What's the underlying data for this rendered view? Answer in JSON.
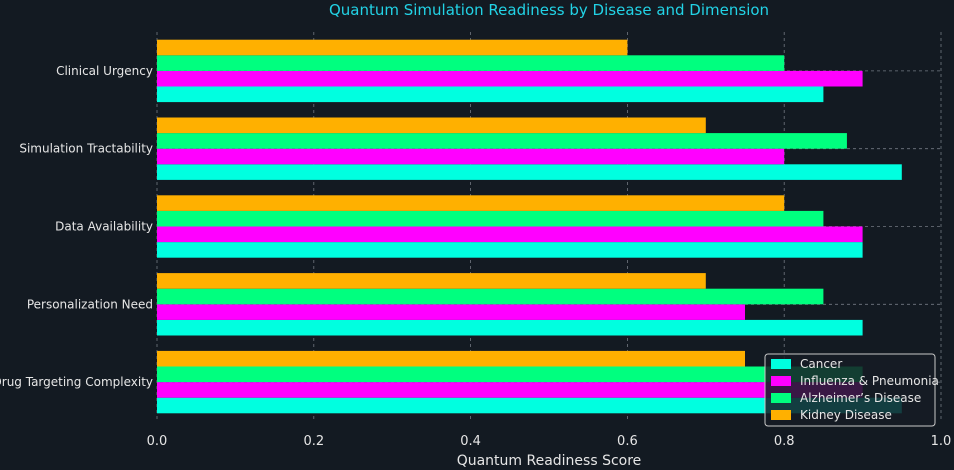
{
  "chart_data": {
    "type": "bar",
    "orientation": "horizontal",
    "title": "Quantum Simulation Readiness by Disease and Dimension",
    "xlabel": "Quantum Readiness Score",
    "ylabel": "",
    "xlim": [
      0,
      1.0
    ],
    "xticks": [
      "0.0",
      "0.2",
      "0.4",
      "0.6",
      "0.8",
      "1.0"
    ],
    "grid": true,
    "legend_position": "bottom-right",
    "categories": [
      "Clinical Urgency",
      "Simulation Tractability",
      "Data Availability",
      "Personalization Need",
      "Drug Targeting Complexity"
    ],
    "series": [
      {
        "name": "Cancer",
        "color": "#00ffe0",
        "values": [
          0.85,
          0.95,
          0.9,
          0.9,
          0.95
        ]
      },
      {
        "name": "Influenza & Pneumonia",
        "color": "#ff00ff",
        "values": [
          0.9,
          0.8,
          0.9,
          0.75,
          0.9
        ]
      },
      {
        "name": "Alzheimer’s Disease",
        "color": "#00ff7f",
        "values": [
          0.8,
          0.88,
          0.85,
          0.85,
          0.9
        ]
      },
      {
        "name": "Kidney Disease",
        "color": "#ffb000",
        "values": [
          0.6,
          0.7,
          0.8,
          0.7,
          0.75
        ]
      }
    ]
  }
}
